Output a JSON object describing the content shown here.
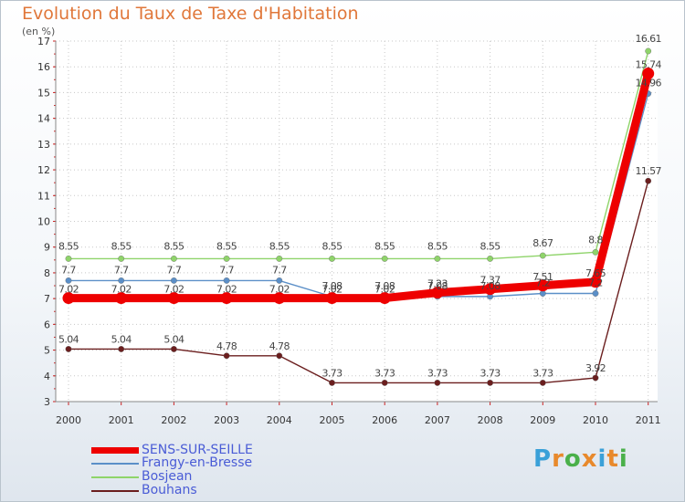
{
  "header": {
    "title": "Evolution du Taux de Taxe d'Habitation",
    "subtitle": "(en %)"
  },
  "brand": {
    "letters": [
      "P",
      "r",
      "o",
      "x",
      "i",
      "t",
      "i"
    ],
    "colors": [
      "#3aa0d8",
      "#e8892c",
      "#4ab04a",
      "#e8892c",
      "#3aa0d8",
      "#e8892c",
      "#4ab04a"
    ]
  },
  "chart_data": {
    "type": "line",
    "title": "Evolution du Taux de Taxe d'Habitation",
    "ylabel": "(en %)",
    "xlabel": "",
    "x": [
      "2000",
      "2001",
      "2002",
      "2003",
      "2004",
      "2005",
      "2006",
      "2007",
      "2008",
      "2009",
      "2010",
      "2011"
    ],
    "ylim": [
      3,
      17
    ],
    "yticks": [
      3,
      4,
      5,
      6,
      7,
      8,
      9,
      10,
      11,
      12,
      13,
      14,
      15,
      16,
      17
    ],
    "grid": "horizontal dotted",
    "legend_position": "bottom-left",
    "series": [
      {
        "name": "SENS-SUR-SEILLE",
        "color": "#ee0000",
        "values": [
          7.02,
          7.02,
          7.02,
          7.02,
          7.02,
          7.02,
          7.02,
          7.23,
          7.37,
          7.51,
          7.65,
          15.74
        ],
        "labels": [
          "7.02",
          "7.02",
          "7.02",
          "7.02",
          "7.02",
          "7.02",
          "7.02",
          "7.23",
          "7.37",
          "7.51",
          "7.65",
          "15.74"
        ]
      },
      {
        "name": "Frangy-en-Bresse",
        "color": "#5b8fc8",
        "values": [
          7.7,
          7.7,
          7.7,
          7.7,
          7.7,
          7.08,
          7.08,
          7.08,
          7.08,
          7.2,
          7.2,
          14.96
        ],
        "labels": [
          "7.7",
          "7.7",
          "7.7",
          "7.7",
          "7.7",
          "7.08",
          "7.08",
          "7.08",
          "7.08",
          "7.2",
          "7.2",
          "14.96"
        ]
      },
      {
        "name": "Bosjean",
        "color": "#8fd46a",
        "values": [
          8.55,
          8.55,
          8.55,
          8.55,
          8.55,
          8.55,
          8.55,
          8.55,
          8.55,
          8.67,
          8.8,
          16.61
        ],
        "labels": [
          "8.55",
          "8.55",
          "8.55",
          "8.55",
          "8.55",
          "8.55",
          "8.55",
          "8.55",
          "8.55",
          "8.67",
          "8.8",
          "16.61"
        ]
      },
      {
        "name": "Bouhans",
        "color": "#6b1e1e",
        "values": [
          5.04,
          5.04,
          5.04,
          4.78,
          4.78,
          3.73,
          3.73,
          3.73,
          3.73,
          3.73,
          3.92,
          11.57
        ],
        "labels": [
          "5.04",
          "5.04",
          "5.04",
          "4.78",
          "4.78",
          "3.73",
          "3.73",
          "3.73",
          "3.73",
          "3.73",
          "3.92",
          "11.57"
        ]
      }
    ]
  }
}
